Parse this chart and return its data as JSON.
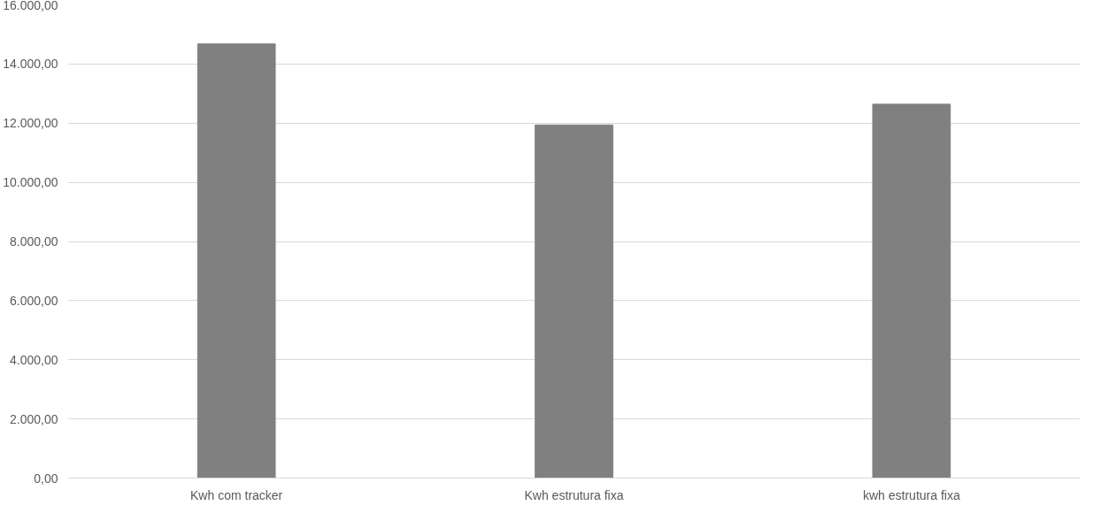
{
  "chart_data": {
    "type": "bar",
    "categories": [
      "Kwh com tracker",
      "Kwh estrutura fixa",
      "kwh estrutura fixa"
    ],
    "values": [
      14680,
      11940,
      12640
    ],
    "color": "#808080",
    "ylim": [
      0,
      16000
    ],
    "yticks": [
      {
        "value": 0,
        "label": "0,00"
      },
      {
        "value": 2000,
        "label": "2.000,00"
      },
      {
        "value": 4000,
        "label": "4.000,00"
      },
      {
        "value": 6000,
        "label": "6.000,00"
      },
      {
        "value": 8000,
        "label": "8.000,00"
      },
      {
        "value": 10000,
        "label": "10.000,00"
      },
      {
        "value": 12000,
        "label": "12.000,00"
      },
      {
        "value": 14000,
        "label": "14.000,00"
      },
      {
        "value": 16000,
        "label": "16.000,00"
      }
    ],
    "grid": "y"
  }
}
